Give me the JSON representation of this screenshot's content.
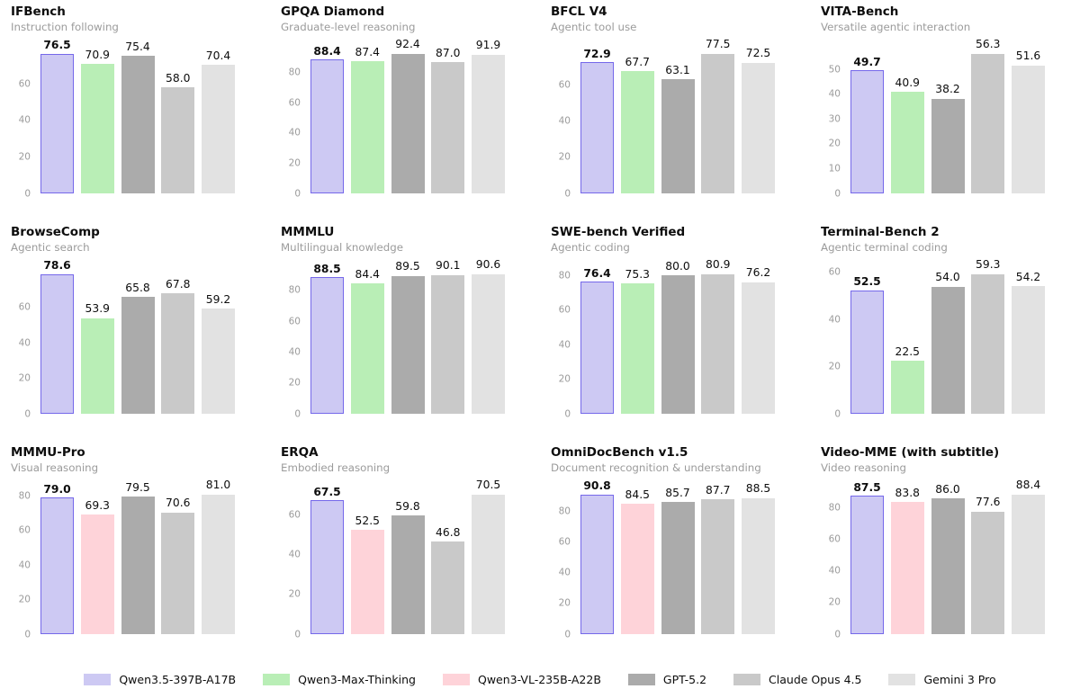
{
  "page": {
    "background": "#ffffff"
  },
  "models": {
    "qwen35": {
      "label": "Qwen3.5-397B-A17B",
      "fill": "#cdc9f3",
      "border": "#7568ea",
      "emphasis": true
    },
    "qwen3max": {
      "label": "Qwen3-Max-Thinking",
      "fill": "#b9eeb6"
    },
    "qwenvl": {
      "label": "Qwen3-VL-235B-A22B",
      "fill": "#fed3d9"
    },
    "gpt52": {
      "label": "GPT-5.2",
      "fill": "#ababab"
    },
    "opus45": {
      "label": "Claude Opus 4.5",
      "fill": "#c9c9c9"
    },
    "gemini3": {
      "label": "Gemini 3 Pro",
      "fill": "#e2e2e2"
    }
  },
  "legend_order": [
    "qwen35",
    "qwen3max",
    "qwenvl",
    "gpt52",
    "opus45",
    "gemini3"
  ],
  "chart_data": [
    {
      "type": "bar",
      "title": "IFBench",
      "subtitle": "Instruction following",
      "series": [
        {
          "model": "qwen35",
          "value": 76.5
        },
        {
          "model": "qwen3max",
          "value": 70.9
        },
        {
          "model": "gpt52",
          "value": 75.4
        },
        {
          "model": "opus45",
          "value": 58.0
        },
        {
          "model": "gemini3",
          "value": 70.4
        }
      ],
      "yticks": [
        0,
        20,
        40,
        60
      ],
      "ylim": [
        0,
        78.8
      ],
      "grid": false,
      "legend_position": "bottom-shared"
    },
    {
      "type": "bar",
      "title": "GPQA Diamond",
      "subtitle": "Graduate-level reasoning",
      "series": [
        {
          "model": "qwen35",
          "value": 88.4
        },
        {
          "model": "qwen3max",
          "value": 87.4
        },
        {
          "model": "gpt52",
          "value": 92.4
        },
        {
          "model": "opus45",
          "value": 87.0
        },
        {
          "model": "gemini3",
          "value": 91.9
        }
      ],
      "yticks": [
        0,
        20,
        40,
        60,
        80
      ],
      "ylim": [
        0,
        95.2
      ],
      "grid": false,
      "legend_position": "bottom-shared"
    },
    {
      "type": "bar",
      "title": "BFCL V4",
      "subtitle": "Agentic tool use",
      "series": [
        {
          "model": "qwen35",
          "value": 72.9
        },
        {
          "model": "qwen3max",
          "value": 67.7
        },
        {
          "model": "gpt52",
          "value": 63.1
        },
        {
          "model": "opus45",
          "value": 77.5
        },
        {
          "model": "gemini3",
          "value": 72.5
        }
      ],
      "yticks": [
        0,
        20,
        40,
        60
      ],
      "ylim": [
        0,
        79.8
      ],
      "grid": false,
      "legend_position": "bottom-shared"
    },
    {
      "type": "bar",
      "title": "VITA-Bench",
      "subtitle": "Versatile agentic interaction",
      "series": [
        {
          "model": "qwen35",
          "value": 49.7
        },
        {
          "model": "qwen3max",
          "value": 40.9
        },
        {
          "model": "gpt52",
          "value": 38.2
        },
        {
          "model": "opus45",
          "value": 56.3
        },
        {
          "model": "gemini3",
          "value": 51.6
        }
      ],
      "yticks": [
        0,
        10,
        20,
        30,
        40,
        50
      ],
      "ylim": [
        0,
        58.0
      ],
      "grid": false,
      "legend_position": "bottom-shared"
    },
    {
      "type": "bar",
      "title": "BrowseComp",
      "subtitle": "Agentic search",
      "series": [
        {
          "model": "qwen35",
          "value": 78.6
        },
        {
          "model": "qwen3max",
          "value": 53.9
        },
        {
          "model": "gpt52",
          "value": 65.8
        },
        {
          "model": "opus45",
          "value": 67.8
        },
        {
          "model": "gemini3",
          "value": 59.2
        }
      ],
      "yticks": [
        0,
        20,
        40,
        60
      ],
      "ylim": [
        0,
        81.0
      ],
      "grid": false,
      "legend_position": "bottom-shared"
    },
    {
      "type": "bar",
      "title": "MMMLU",
      "subtitle": "Multilingual knowledge",
      "series": [
        {
          "model": "qwen35",
          "value": 88.5
        },
        {
          "model": "qwen3max",
          "value": 84.4
        },
        {
          "model": "gpt52",
          "value": 89.5
        },
        {
          "model": "opus45",
          "value": 90.1
        },
        {
          "model": "gemini3",
          "value": 90.6
        }
      ],
      "yticks": [
        0,
        20,
        40,
        60,
        80
      ],
      "ylim": [
        0,
        93.3
      ],
      "grid": false,
      "legend_position": "bottom-shared"
    },
    {
      "type": "bar",
      "title": "SWE-bench Verified",
      "subtitle": "Agentic coding",
      "series": [
        {
          "model": "qwen35",
          "value": 76.4
        },
        {
          "model": "qwen3max",
          "value": 75.3
        },
        {
          "model": "gpt52",
          "value": 80.0
        },
        {
          "model": "opus45",
          "value": 80.9
        },
        {
          "model": "gemini3",
          "value": 76.2
        }
      ],
      "yticks": [
        0,
        20,
        40,
        60,
        80
      ],
      "ylim": [
        0,
        83.3
      ],
      "grid": false,
      "legend_position": "bottom-shared"
    },
    {
      "type": "bar",
      "title": "Terminal-Bench 2",
      "subtitle": "Agentic terminal coding",
      "series": [
        {
          "model": "qwen35",
          "value": 52.5
        },
        {
          "model": "qwen3max",
          "value": 22.5
        },
        {
          "model": "gpt52",
          "value": 54.0
        },
        {
          "model": "opus45",
          "value": 59.3
        },
        {
          "model": "gemini3",
          "value": 54.2
        }
      ],
      "yticks": [
        0,
        20,
        40,
        60
      ],
      "ylim": [
        0,
        61.1
      ],
      "grid": false,
      "legend_position": "bottom-shared"
    },
    {
      "type": "bar",
      "title": "MMMU-Pro",
      "subtitle": "Visual reasoning",
      "series": [
        {
          "model": "qwen35",
          "value": 79.0
        },
        {
          "model": "qwenvl",
          "value": 69.3
        },
        {
          "model": "gpt52",
          "value": 79.5
        },
        {
          "model": "opus45",
          "value": 70.6
        },
        {
          "model": "gemini3",
          "value": 81.0
        }
      ],
      "yticks": [
        0,
        20,
        40,
        60,
        80
      ],
      "ylim": [
        0,
        83.4
      ],
      "grid": false,
      "legend_position": "bottom-shared"
    },
    {
      "type": "bar",
      "title": "ERQA",
      "subtitle": "Embodied reasoning",
      "series": [
        {
          "model": "qwen35",
          "value": 67.5
        },
        {
          "model": "qwenvl",
          "value": 52.5
        },
        {
          "model": "gpt52",
          "value": 59.8
        },
        {
          "model": "opus45",
          "value": 46.8
        },
        {
          "model": "gemini3",
          "value": 70.5
        }
      ],
      "yticks": [
        0,
        20,
        40,
        60
      ],
      "ylim": [
        0,
        72.6
      ],
      "grid": false,
      "legend_position": "bottom-shared"
    },
    {
      "type": "bar",
      "title": "OmniDocBench v1.5",
      "subtitle": "Document recognition & understanding",
      "series": [
        {
          "model": "qwen35",
          "value": 90.8
        },
        {
          "model": "qwenvl",
          "value": 84.5
        },
        {
          "model": "gpt52",
          "value": 85.7
        },
        {
          "model": "opus45",
          "value": 87.7
        },
        {
          "model": "gemini3",
          "value": 88.5
        }
      ],
      "yticks": [
        0,
        20,
        40,
        60,
        80
      ],
      "ylim": [
        0,
        93.5
      ],
      "grid": false,
      "legend_position": "bottom-shared"
    },
    {
      "type": "bar",
      "title": "Video-MME (with subtitle)",
      "subtitle": "Video reasoning",
      "series": [
        {
          "model": "qwen35",
          "value": 87.5
        },
        {
          "model": "qwenvl",
          "value": 83.8
        },
        {
          "model": "gpt52",
          "value": 86.0
        },
        {
          "model": "opus45",
          "value": 77.6
        },
        {
          "model": "gemini3",
          "value": 88.4
        }
      ],
      "yticks": [
        0,
        20,
        40,
        60,
        80
      ],
      "ylim": [
        0,
        91.1
      ],
      "grid": false,
      "legend_position": "bottom-shared"
    }
  ]
}
